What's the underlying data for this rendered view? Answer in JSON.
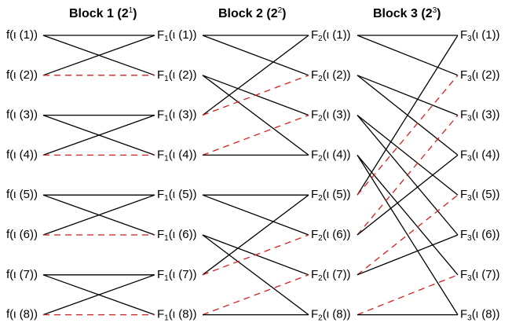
{
  "headers": [
    {
      "title": "Block 1 (2",
      "exponent": "1",
      "close": ")"
    },
    {
      "title": "Block 2 (2",
      "exponent": "2",
      "close": ")"
    },
    {
      "title": "Block 3 (2",
      "exponent": "3",
      "close": ")"
    }
  ],
  "columns": [
    {
      "name": "f",
      "subscript": "",
      "labels": [
        "(ι (1))",
        "(ι (2))",
        "(ι (3))",
        "(ι (4))",
        "(ι (5))",
        "(ι (6))",
        "(ι (7))",
        "(ι (8))"
      ]
    },
    {
      "name": "F",
      "subscript": "1",
      "labels": [
        "(ι (1))",
        "(ι (2))",
        "(ι (3))",
        "(ι (4))",
        "(ι (5))",
        "(ι (6))",
        "(ι (7))",
        "(ι (8))"
      ]
    },
    {
      "name": "F",
      "subscript": "2",
      "labels": [
        "(ι (1))",
        "(ι (2))",
        "(ι (3))",
        "(ι (4))",
        "(ι (5))",
        "(ι (6))",
        "(ι (7))",
        "(ι (8))"
      ]
    },
    {
      "name": "F",
      "subscript": "3",
      "labels": [
        "(ι (1))",
        "(ι (2))",
        "(ι (3))",
        "(ι (4))",
        "(ι (5))",
        "(ι (6))",
        "(ι (7))",
        "(ι (8))"
      ]
    }
  ],
  "blocks": [
    {
      "connections": [
        {
          "from": 1,
          "to": 1,
          "style": "solid"
        },
        {
          "from": 1,
          "to": 2,
          "style": "solid"
        },
        {
          "from": 2,
          "to": 1,
          "style": "solid"
        },
        {
          "from": 2,
          "to": 2,
          "style": "dashed"
        },
        {
          "from": 3,
          "to": 3,
          "style": "solid"
        },
        {
          "from": 3,
          "to": 4,
          "style": "solid"
        },
        {
          "from": 4,
          "to": 3,
          "style": "solid"
        },
        {
          "from": 4,
          "to": 4,
          "style": "dashed"
        },
        {
          "from": 5,
          "to": 5,
          "style": "solid"
        },
        {
          "from": 5,
          "to": 6,
          "style": "solid"
        },
        {
          "from": 6,
          "to": 5,
          "style": "solid"
        },
        {
          "from": 6,
          "to": 6,
          "style": "dashed"
        },
        {
          "from": 7,
          "to": 7,
          "style": "solid"
        },
        {
          "from": 7,
          "to": 8,
          "style": "solid"
        },
        {
          "from": 8,
          "to": 7,
          "style": "solid"
        },
        {
          "from": 8,
          "to": 8,
          "style": "dashed"
        }
      ]
    },
    {
      "connections": [
        {
          "from": 1,
          "to": 1,
          "style": "solid"
        },
        {
          "from": 1,
          "to": 2,
          "style": "solid"
        },
        {
          "from": 2,
          "to": 3,
          "style": "solid"
        },
        {
          "from": 2,
          "to": 4,
          "style": "solid"
        },
        {
          "from": 3,
          "to": 1,
          "style": "solid"
        },
        {
          "from": 3,
          "to": 2,
          "style": "dashed"
        },
        {
          "from": 4,
          "to": 3,
          "style": "dashed"
        },
        {
          "from": 4,
          "to": 4,
          "style": "solid"
        },
        {
          "from": 5,
          "to": 5,
          "style": "solid"
        },
        {
          "from": 5,
          "to": 6,
          "style": "solid"
        },
        {
          "from": 6,
          "to": 7,
          "style": "solid"
        },
        {
          "from": 6,
          "to": 8,
          "style": "solid"
        },
        {
          "from": 7,
          "to": 5,
          "style": "solid"
        },
        {
          "from": 7,
          "to": 6,
          "style": "dashed"
        },
        {
          "from": 8,
          "to": 7,
          "style": "dashed"
        },
        {
          "from": 8,
          "to": 8,
          "style": "solid"
        }
      ]
    },
    {
      "connections": [
        {
          "from": 1,
          "to": 1,
          "style": "solid"
        },
        {
          "from": 1,
          "to": 2,
          "style": "solid"
        },
        {
          "from": 2,
          "to": 3,
          "style": "solid"
        },
        {
          "from": 2,
          "to": 4,
          "style": "solid"
        },
        {
          "from": 3,
          "to": 5,
          "style": "solid"
        },
        {
          "from": 3,
          "to": 6,
          "style": "solid"
        },
        {
          "from": 4,
          "to": 7,
          "style": "solid"
        },
        {
          "from": 4,
          "to": 8,
          "style": "solid"
        },
        {
          "from": 5,
          "to": 1,
          "style": "solid"
        },
        {
          "from": 5,
          "to": 2,
          "style": "dashed"
        },
        {
          "from": 6,
          "to": 3,
          "style": "dashed"
        },
        {
          "from": 6,
          "to": 4,
          "style": "solid"
        },
        {
          "from": 7,
          "to": 5,
          "style": "dashed"
        },
        {
          "from": 7,
          "to": 6,
          "style": "solid"
        },
        {
          "from": 8,
          "to": 7,
          "style": "dashed"
        },
        {
          "from": 8,
          "to": 8,
          "style": "solid"
        }
      ]
    }
  ],
  "colors": {
    "solid": "#000000",
    "dashed": "#d42020"
  }
}
